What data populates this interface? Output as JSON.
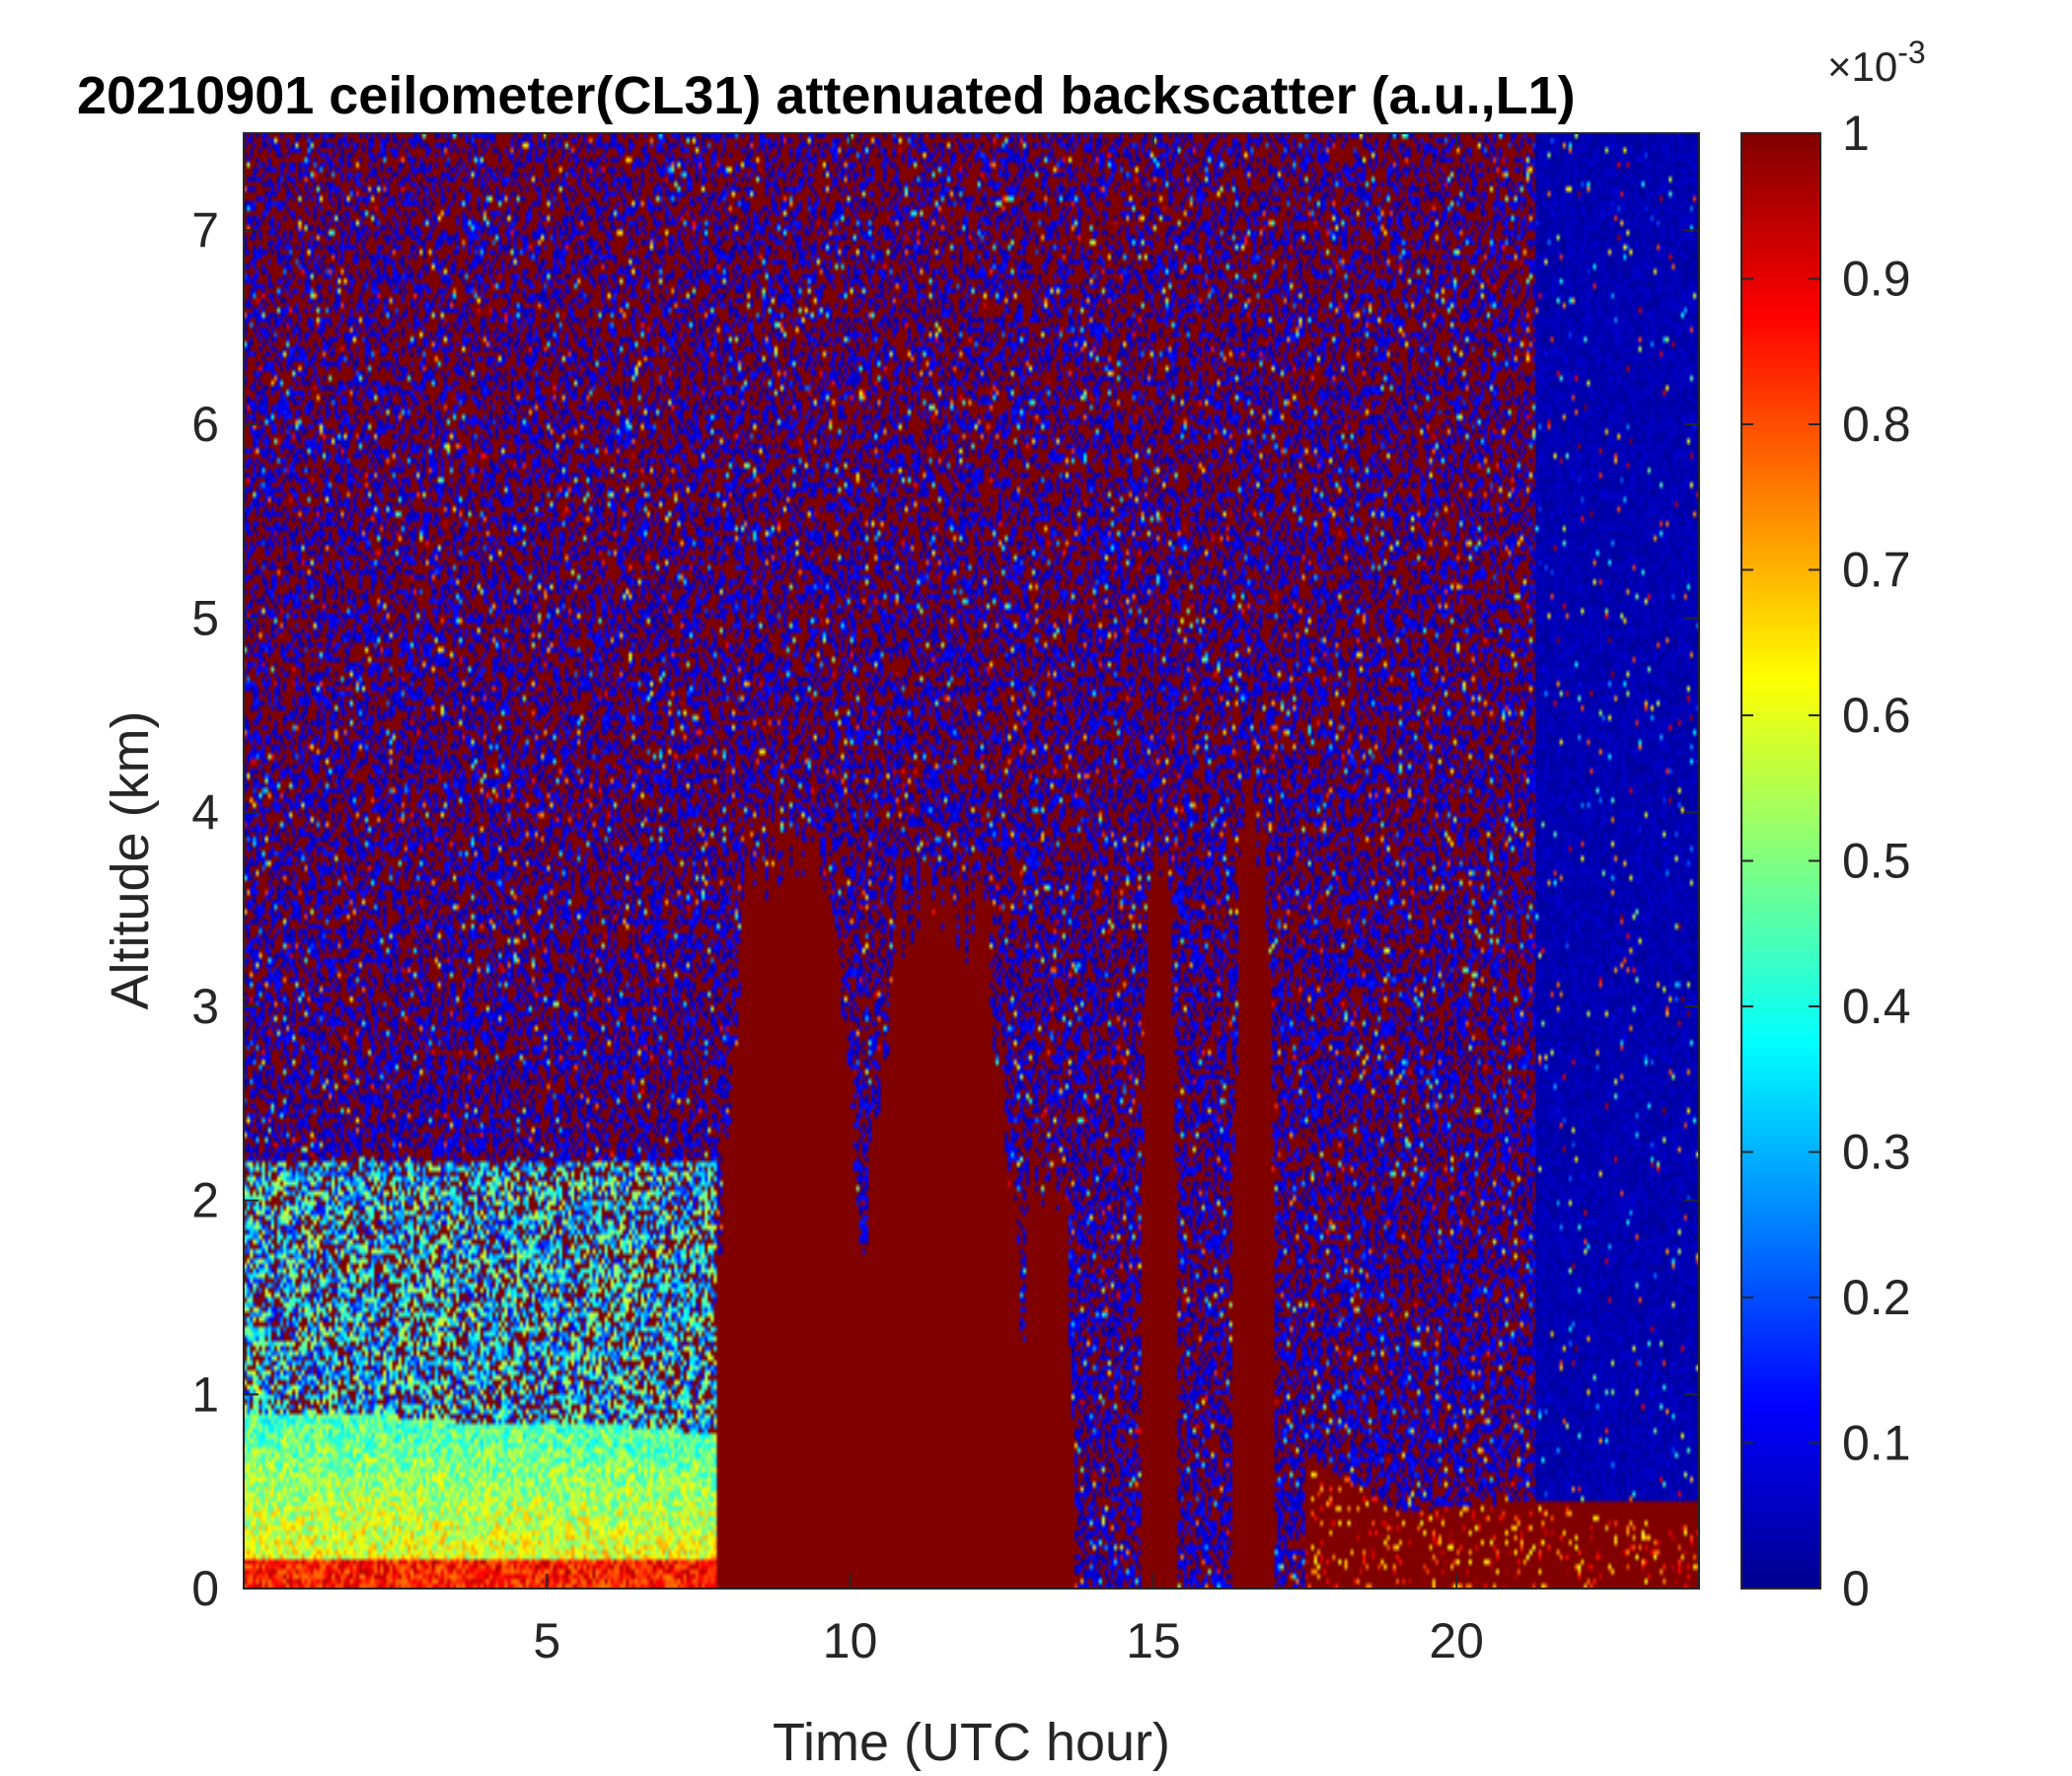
{
  "chart_data": {
    "type": "heatmap",
    "title": "20210901 ceilometer(CL31) attenuated backscatter (a.u.,L1)",
    "xlabel": "Time (UTC hour)",
    "ylabel": "Altitude (km)",
    "xlim": [
      0,
      24
    ],
    "ylim": [
      0,
      7.5
    ],
    "x_ticks": [
      5,
      10,
      15,
      20
    ],
    "y_ticks": [
      0,
      1,
      2,
      3,
      4,
      5,
      6,
      7
    ],
    "colorbar": {
      "colormap": "jet",
      "range": [
        0,
        1
      ],
      "exponent_label": "×10",
      "exponent_power": "-3",
      "ticks": [
        "0",
        "0.1",
        "0.2",
        "0.3",
        "0.4",
        "0.5",
        "0.6",
        "0.7",
        "0.8",
        "0.9",
        "1"
      ]
    },
    "colors": {
      "high": "#800000",
      "low": "#00008f",
      "axis": "#262626"
    },
    "features": {
      "aerosol_layer_top_km": {
        "x": [
          0,
          2,
          4,
          6,
          7.7
        ],
        "y": [
          0.9,
          0.9,
          0.85,
          0.85,
          0.8
        ]
      },
      "dense_cloud": [
        {
          "x0": 7.8,
          "x1": 10.2,
          "top_km": 3.8
        },
        {
          "x0": 10.2,
          "x1": 12.8,
          "top_km": 3.5
        },
        {
          "x0": 12.8,
          "x1": 13.7,
          "top_km": 2.2
        },
        {
          "x0": 14.8,
          "x1": 15.4,
          "top_km": 3.7
        },
        {
          "x0": 16.3,
          "x1": 17.0,
          "top_km": 4.0
        }
      ],
      "boundary_layer_top_km": {
        "x": [
          17.5,
          19,
          21.3,
          24
        ],
        "y": [
          0.7,
          0.4,
          0.45,
          0.3
        ]
      },
      "clear_region_x": [
        21.3,
        24
      ]
    }
  }
}
